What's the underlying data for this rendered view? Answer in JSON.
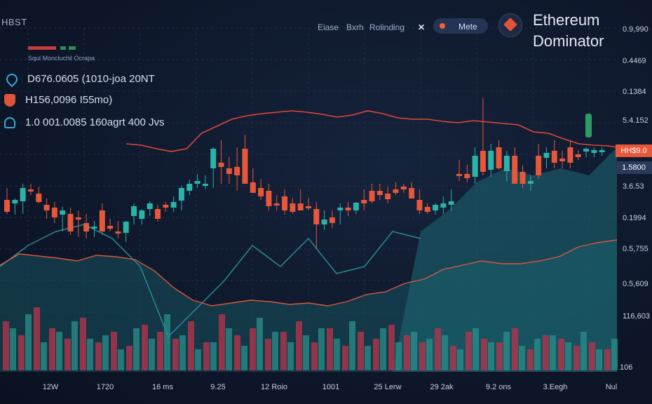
{
  "header": {
    "brand": "HBST",
    "nav": [
      "Eiase",
      "Bxrh",
      "Rolinding"
    ],
    "nav_symbol": "✕",
    "mode_label": "Mete",
    "title_line1": "Ethereum",
    "title_line2": "Dominator"
  },
  "legend": {
    "subtitle": "Squl Moncluchil Ocrapa"
  },
  "stats": [
    {
      "icon": "droplet-icon",
      "text": "D676.0605  (1010-joa 20NT"
    },
    {
      "icon": "shield-icon",
      "text": "H156,0096  I55mo)"
    },
    {
      "icon": "user-icon",
      "text": "1.0 001.0085  160agrt 400 Jvs"
    }
  ],
  "price_tags": [
    {
      "text": "HH$9.0",
      "color": "#e8573a"
    },
    {
      "text": "1.5800",
      "color": "#2a3a5a"
    }
  ],
  "colors": {
    "up": "#2bb3a8",
    "down": "#e8573a",
    "line": "#e04a3a",
    "area": "#1f6a78",
    "vol_up": "#2a8f8a",
    "vol_down": "#b3344c"
  },
  "chart_data": {
    "type": "candlestick",
    "title": "Ethereum Dominator",
    "y_ticks": [
      "0.9,990",
      "0.4469",
      "0.1384",
      "5.4.152",
      "3.6.53",
      "0.1994",
      "0.5,755",
      "0.5,609",
      "116,603",
      "106"
    ],
    "x_ticks": [
      "12W",
      "1720",
      "16 ms",
      "9.25",
      "12 Roio",
      "1001",
      "25 Lerw",
      "29 2ak",
      "9.2 ons",
      "3.Eegh",
      "Nul"
    ],
    "candles": [
      [
        285,
        268,
        305,
        302
      ],
      [
        290,
        283,
        306,
        285
      ],
      [
        287,
        262,
        305,
        268
      ],
      [
        270,
        262,
        278,
        270
      ],
      [
        276,
        266,
        290,
        288
      ],
      [
        292,
        283,
        312,
        300
      ],
      [
        296,
        288,
        318,
        310
      ],
      [
        306,
        295,
        330,
        300
      ],
      [
        305,
        296,
        335,
        330
      ],
      [
        310,
        300,
        338,
        312
      ],
      [
        318,
        305,
        340,
        330
      ],
      [
        326,
        315,
        338,
        323
      ],
      [
        300,
        290,
        335,
        330
      ],
      [
        322,
        312,
        330,
        326
      ],
      [
        330,
        315,
        340,
        332
      ],
      [
        332,
        315,
        345,
        316
      ],
      [
        308,
        290,
        320,
        294
      ],
      [
        312,
        298,
        320,
        300
      ],
      [
        298,
        287,
        308,
        290
      ],
      [
        298,
        292,
        316,
        312
      ],
      [
        292,
        288,
        302,
        296
      ],
      [
        296,
        280,
        302,
        288
      ],
      [
        286,
        265,
        300,
        268
      ],
      [
        272,
        256,
        278,
        262
      ],
      [
        262,
        248,
        268,
        258
      ],
      [
        265,
        250,
        270,
        262
      ],
      [
        240,
        210,
        268,
        212
      ],
      [
        232,
        200,
        262,
        238
      ],
      [
        240,
        224,
        262,
        248
      ],
      [
        238,
        210,
        272,
        250
      ],
      [
        212,
        192,
        240,
        262
      ],
      [
        260,
        240,
        275,
        275
      ],
      [
        268,
        255,
        285,
        280
      ],
      [
        272,
        262,
        300,
        294
      ],
      [
        290,
        278,
        300,
        292
      ],
      [
        280,
        270,
        306,
        300
      ],
      [
        290,
        282,
        305,
        302
      ],
      [
        290,
        270,
        300,
        300
      ],
      [
        294,
        282,
        300,
        297
      ],
      [
        298,
        288,
        355,
        320
      ],
      [
        320,
        300,
        328,
        313
      ],
      [
        310,
        300,
        325,
        318
      ],
      [
        300,
        290,
        320,
        296
      ],
      [
        296,
        288,
        308,
        300
      ],
      [
        300,
        288,
        305,
        289
      ],
      [
        285,
        270,
        300,
        290
      ],
      [
        272,
        262,
        290,
        287
      ],
      [
        272,
        262,
        285,
        278
      ],
      [
        276,
        266,
        290,
        284
      ],
      [
        270,
        260,
        278,
        275
      ],
      [
        266,
        262,
        275,
        270
      ],
      [
        268,
        260,
        282,
        283
      ],
      [
        285,
        270,
        305,
        300
      ],
      [
        295,
        290,
        305,
        302
      ],
      [
        300,
        290,
        306,
        292
      ],
      [
        296,
        280,
        305,
        290
      ],
      [
        292,
        270,
        300,
        287
      ],
      [
        248,
        228,
        258,
        250
      ],
      [
        248,
        235,
        260,
        254
      ],
      [
        252,
        210,
        262,
        222
      ],
      [
        215,
        140,
        250,
        245
      ],
      [
        242,
        205,
        252,
        215
      ],
      [
        210,
        200,
        242,
        240
      ],
      [
        244,
        215,
        258,
        222
      ],
      [
        222,
        210,
        262,
        262
      ],
      [
        245,
        236,
        268,
        262
      ],
      [
        262,
        250,
        272,
        258
      ],
      [
        222,
        205,
        255,
        250
      ],
      [
        225,
        210,
        240,
        218
      ],
      [
        215,
        200,
        240,
        232
      ],
      [
        226,
        215,
        240,
        230
      ],
      [
        210,
        200,
        240,
        232
      ],
      [
        220,
        214,
        228,
        224
      ],
      [
        216,
        210,
        224,
        212
      ],
      [
        218,
        210,
        224,
        214
      ],
      [
        216,
        210,
        222,
        214
      ]
    ],
    "resistance_line": [
      205,
      207,
      212,
      216,
      212,
      190,
      180,
      170,
      165,
      162,
      160,
      158,
      160,
      163,
      167,
      164,
      158,
      162,
      168,
      170,
      170,
      173,
      175,
      172,
      174,
      176,
      178,
      188,
      190,
      198,
      205,
      207,
      208,
      212
    ],
    "support_line": [
      378,
      362,
      365,
      368,
      372,
      364,
      366,
      370,
      386,
      410,
      428,
      436,
      432,
      428,
      430,
      434,
      432,
      436,
      430,
      420,
      416,
      404,
      398,
      384,
      378,
      372,
      376,
      376,
      372,
      366,
      352,
      346,
      342
    ],
    "volume_up": [
      60,
      80,
      40,
      55,
      70,
      45,
      50,
      30,
      60,
      45,
      80,
      50,
      30,
      40,
      60,
      35,
      75,
      55,
      40,
      50,
      60,
      45,
      70,
      35,
      60,
      40,
      55,
      45,
      50,
      30,
      60,
      40,
      55,
      35,
      45,
      50,
      40,
      55,
      30,
      45
    ],
    "volume_down": [
      70,
      50,
      90,
      60,
      45,
      75,
      40,
      55,
      35,
      65,
      55,
      45,
      70,
      40,
      80,
      50,
      60,
      45,
      55,
      70,
      40,
      60,
      35,
      55,
      45,
      65,
      50,
      40,
      60,
      35,
      55,
      45,
      40,
      60,
      30,
      50,
      45,
      35,
      40,
      30
    ]
  }
}
